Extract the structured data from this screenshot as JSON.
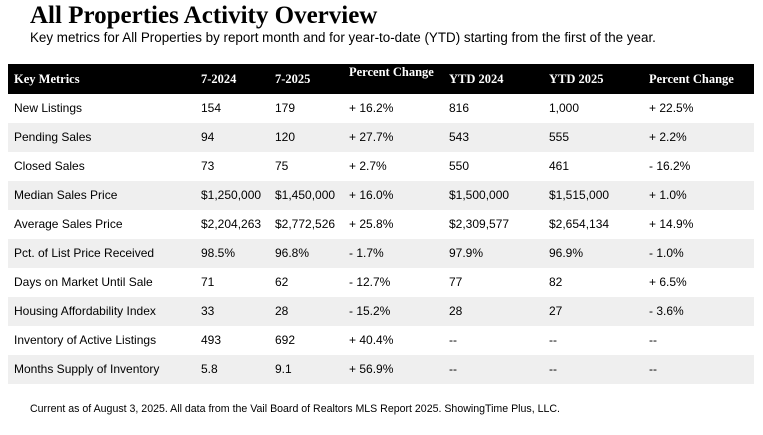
{
  "header": {
    "title": "All Properties Activity Overview",
    "subtitle": "Key metrics for All Properties by report month and for year-to-date (YTD) starting from the first of the year."
  },
  "table": {
    "columns": [
      "Key Metrics",
      "7-2024",
      "7-2025",
      "Percent Change",
      "YTD 2024",
      "YTD 2025",
      "Percent Change"
    ],
    "rows": [
      [
        "New Listings",
        "154",
        "179",
        "+ 16.2%",
        "816",
        "1,000",
        "+ 22.5%"
      ],
      [
        "Pending Sales",
        "94",
        "120",
        "+ 27.7%",
        "543",
        "555",
        "+ 2.2%"
      ],
      [
        "Closed Sales",
        "73",
        "75",
        "+ 2.7%",
        "550",
        "461",
        "- 16.2%"
      ],
      [
        "Median Sales Price",
        "$1,250,000",
        "$1,450,000",
        "+ 16.0%",
        "$1,500,000",
        "$1,515,000",
        "+ 1.0%"
      ],
      [
        "Average Sales Price",
        "$2,204,263",
        "$2,772,526",
        "+ 25.8%",
        "$2,309,577",
        "$2,654,134",
        "+ 14.9%"
      ],
      [
        "Pct. of List Price Received",
        "98.5%",
        "96.8%",
        "- 1.7%",
        "97.9%",
        "96.9%",
        "- 1.0%"
      ],
      [
        "Days on Market Until Sale",
        "71",
        "62",
        "- 12.7%",
        "77",
        "82",
        "+ 6.5%"
      ],
      [
        "Housing Affordability Index",
        "33",
        "28",
        "- 15.2%",
        "28",
        "27",
        "- 3.6%"
      ],
      [
        "Inventory of Active Listings",
        "493",
        "692",
        "+ 40.4%",
        "--",
        "--",
        "--"
      ],
      [
        "Months Supply of Inventory",
        "5.8",
        "9.1",
        "+ 56.9%",
        "--",
        "--",
        "--"
      ]
    ]
  },
  "footer": {
    "note": "Current as of August 3, 2025. All data from the Vail Board of Realtors MLS Report 2025. ShowingTime Plus, LLC."
  }
}
